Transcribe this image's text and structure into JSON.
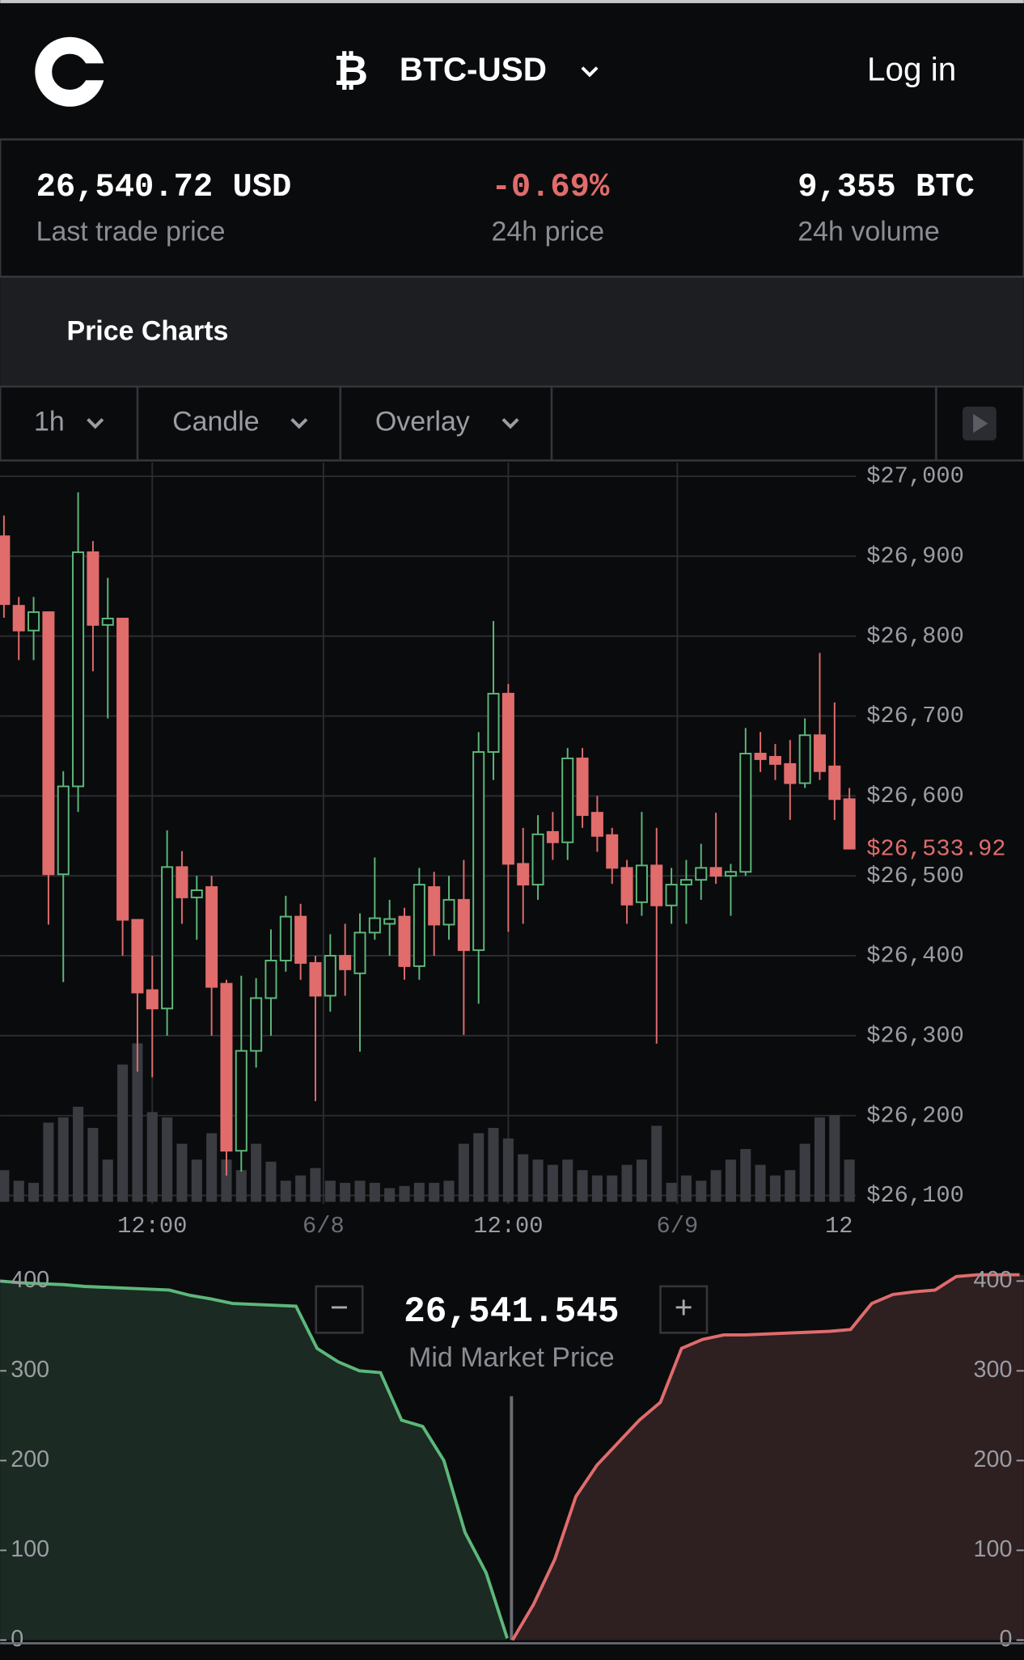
{
  "header": {
    "pair": "BTC-USD",
    "login": "Log in"
  },
  "stats": [
    {
      "value": "26,540.72 USD",
      "label": "Last trade price"
    },
    {
      "value": "-0.69%",
      "label": "24h price"
    },
    {
      "value": "9,355 BTC",
      "label": "24h volume"
    }
  ],
  "tab": "Price Charts",
  "controls": [
    "1h",
    "Candle",
    "Overlay"
  ],
  "chart_data": [
    {
      "type": "candlestick",
      "open": [
        26925,
        26838,
        26807,
        26830,
        26502,
        26612,
        26905,
        26814,
        26822,
        26445,
        26357,
        26334,
        26511,
        26473,
        26486,
        26365,
        26156,
        26281,
        26347,
        26394,
        26449,
        26391,
        26350,
        26400,
        26378,
        26429,
        26440,
        26449,
        26387,
        26486,
        26439,
        26470,
        26407,
        26655,
        26728,
        26515,
        26489,
        26555,
        26542,
        26647,
        26579,
        26551,
        26510,
        26467,
        26513,
        26463,
        26489,
        26495,
        26510,
        26500,
        26505,
        26653,
        26649,
        26640,
        26616,
        26676,
        26637,
        26596
      ],
      "high": [
        26951,
        26849,
        26849,
        26830,
        26631,
        26980,
        26919,
        26873,
        26822,
        26445,
        26400,
        26557,
        26531,
        26500,
        26500,
        26370,
        26375,
        26372,
        26433,
        26475,
        26465,
        26400,
        26427,
        26440,
        26453,
        26523,
        26470,
        26460,
        26510,
        26505,
        26500,
        26520,
        26680,
        26819,
        26740,
        26560,
        26576,
        26580,
        26660,
        26660,
        26600,
        26560,
        26520,
        26580,
        26560,
        26510,
        26520,
        26540,
        26579,
        26515,
        26685,
        26680,
        26665,
        26670,
        26697,
        26779,
        26717,
        26610
      ],
      "low": [
        26823,
        26770,
        26770,
        26439,
        26367,
        26580,
        26756,
        26697,
        26400,
        26255,
        26248,
        26300,
        26440,
        26420,
        26300,
        26125,
        26130,
        26260,
        26300,
        26380,
        26370,
        26218,
        26330,
        26350,
        26280,
        26420,
        26400,
        26370,
        26370,
        26400,
        26420,
        26301,
        26340,
        26620,
        26430,
        26440,
        26470,
        26520,
        26520,
        26560,
        26530,
        26490,
        26440,
        26450,
        26290,
        26440,
        26440,
        26470,
        26490,
        26450,
        26500,
        26630,
        26620,
        26570,
        26610,
        26620,
        26570,
        26534
      ],
      "close": [
        26840,
        26807,
        26830,
        26502,
        26612,
        26905,
        26814,
        26822,
        26445,
        26354,
        26334,
        26511,
        26473,
        26482,
        26361,
        26156,
        26281,
        26347,
        26394,
        26449,
        26391,
        26350,
        26400,
        26383,
        26429,
        26447,
        26446,
        26387,
        26489,
        26439,
        26470,
        26407,
        26655,
        26728,
        26515,
        26489,
        26552,
        26542,
        26647,
        26576,
        26550,
        26510,
        26464,
        26513,
        26463,
        26489,
        26495,
        26510,
        26500,
        26505,
        26653,
        26646,
        26640,
        26616,
        26676,
        26631,
        26596,
        26534
      ],
      "volume": [
        30,
        20,
        18,
        75,
        80,
        90,
        70,
        40,
        130,
        150,
        85,
        80,
        55,
        40,
        65,
        40,
        30,
        55,
        38,
        20,
        25,
        32,
        20,
        18,
        20,
        18,
        13,
        15,
        18,
        18,
        20,
        55,
        65,
        70,
        60,
        45,
        40,
        35,
        40,
        30,
        25,
        25,
        35,
        40,
        72,
        18,
        25,
        20,
        30,
        40,
        50,
        35,
        25,
        30,
        55,
        80,
        82,
        40
      ],
      "x_labels": [
        "12:00",
        "6/8",
        "12:00",
        "6/9",
        "12"
      ],
      "ylim": [
        26100,
        27000
      ],
      "yticks": [
        {
          "value": 26100,
          "label": "$26,100"
        },
        {
          "value": 26200,
          "label": "$26,200"
        },
        {
          "value": 26300,
          "label": "$26,300"
        },
        {
          "value": 26400,
          "label": "$26,400"
        },
        {
          "value": 26500,
          "label": "$26,500"
        },
        {
          "value": 26600,
          "label": "$26,600"
        },
        {
          "value": 26700,
          "label": "$26,700"
        },
        {
          "value": 26800,
          "label": "$26,800"
        },
        {
          "value": 26900,
          "label": "$26,900"
        },
        {
          "value": 27000,
          "label": "$27,000"
        }
      ],
      "last_price": {
        "value": 26533.92,
        "label": "$26,533.92"
      },
      "up_color": "#5cb87a",
      "down_color": "#e06c6c",
      "grid": true
    },
    {
      "type": "depth",
      "mid_price": "26,541.545",
      "mid_label": "Mid Market Price",
      "minus": "−",
      "plus": "+",
      "ylim": [
        0,
        400
      ],
      "yticks": [
        0,
        100,
        200,
        300,
        400
      ],
      "series": [
        {
          "name": "bids",
          "color": "#5cb87a",
          "fill": "#1b2a22",
          "values": [
            400,
            398,
            397,
            396,
            394,
            393,
            392,
            391,
            390,
            384,
            380,
            375,
            374,
            373,
            372,
            325,
            310,
            300,
            298,
            245,
            238,
            200,
            120,
            75,
            2
          ]
        },
        {
          "name": "asks",
          "color": "#e06c6c",
          "fill": "#2e1f21",
          "values": [
            0,
            40,
            90,
            160,
            195,
            220,
            245,
            265,
            325,
            335,
            340,
            340,
            341,
            342,
            343,
            344,
            346,
            375,
            385,
            388,
            390,
            405,
            407,
            407,
            407
          ]
        }
      ]
    }
  ]
}
